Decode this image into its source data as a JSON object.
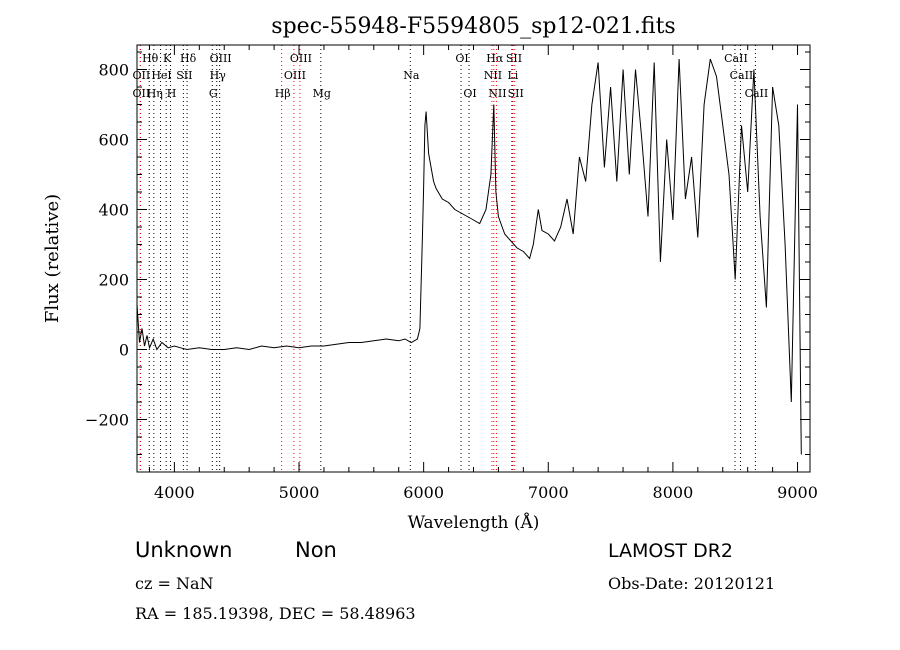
{
  "chart_data": {
    "type": "line",
    "title": "spec-55948-F5594805_sp12-021.fits",
    "xlabel": "Wavelength (Å)",
    "ylabel": "Flux (relative)",
    "xlim": [
      3700,
      9100
    ],
    "ylim": [
      -350,
      870
    ],
    "xticks": [
      4000,
      5000,
      6000,
      7000,
      8000,
      9000
    ],
    "yticks": [
      -200,
      0,
      200,
      400,
      600,
      800
    ],
    "grid": false,
    "series": [
      {
        "color": "#000000",
        "x": [
          3700,
          3720,
          3740,
          3760,
          3780,
          3800,
          3830,
          3860,
          3900,
          3950,
          4000,
          4050,
          4100,
          4200,
          4300,
          4400,
          4500,
          4600,
          4700,
          4800,
          4900,
          5000,
          5100,
          5200,
          5300,
          5400,
          5500,
          5600,
          5700,
          5800,
          5850,
          5900,
          5950,
          5970,
          5990,
          6000,
          6010,
          6020,
          6040,
          6060,
          6080,
          6100,
          6150,
          6200,
          6250,
          6300,
          6350,
          6400,
          6450,
          6500,
          6540,
          6563,
          6580,
          6600,
          6650,
          6700,
          6750,
          6800,
          6850,
          6880,
          6900,
          6920,
          6950,
          7000,
          7050,
          7100,
          7150,
          7200,
          7250,
          7300,
          7350,
          7400,
          7450,
          7500,
          7550,
          7600,
          7650,
          7700,
          7750,
          7800,
          7850,
          7900,
          7950,
          8000,
          8050,
          8100,
          8150,
          8200,
          8250,
          8300,
          8350,
          8400,
          8450,
          8500,
          8550,
          8600,
          8650,
          8700,
          8750,
          8800,
          8850,
          8900,
          8950,
          9000,
          9030
        ],
        "y": [
          130,
          20,
          60,
          10,
          40,
          5,
          30,
          0,
          20,
          5,
          10,
          5,
          0,
          5,
          0,
          0,
          5,
          0,
          10,
          5,
          10,
          5,
          10,
          10,
          15,
          20,
          20,
          25,
          30,
          25,
          30,
          20,
          30,
          60,
          320,
          460,
          640,
          680,
          560,
          520,
          480,
          460,
          430,
          420,
          400,
          390,
          380,
          370,
          360,
          400,
          500,
          700,
          450,
          380,
          330,
          310,
          290,
          280,
          260,
          300,
          350,
          400,
          340,
          330,
          310,
          350,
          430,
          330,
          550,
          480,
          700,
          820,
          520,
          750,
          480,
          800,
          500,
          800,
          600,
          380,
          820,
          250,
          600,
          370,
          830,
          430,
          550,
          320,
          700,
          830,
          780,
          640,
          500,
          200,
          640,
          450,
          800,
          380,
          120,
          750,
          640,
          300,
          -150,
          700,
          -300
        ]
      }
    ],
    "line_markers": [
      {
        "label": "Hθ",
        "wl": 3798,
        "row": 1,
        "color": "#000000"
      },
      {
        "label": "OII",
        "wl": 3727,
        "row": 2,
        "color": "#000000"
      },
      {
        "label": "OII",
        "wl": 3727,
        "row": 3,
        "color": "#ff0000"
      },
      {
        "label": "Hη",
        "wl": 3835,
        "row": 3,
        "color": "#000000"
      },
      {
        "label": "K",
        "wl": 3934,
        "row": 1,
        "color": "#000000"
      },
      {
        "label": "HeI",
        "wl": 3889,
        "row": 2,
        "color": "#000000"
      },
      {
        "label": "SII",
        "wl": 4072,
        "row": 2,
        "color": "#000000"
      },
      {
        "label": "H",
        "wl": 3969,
        "row": 3,
        "color": "#000000"
      },
      {
        "label": "Hδ",
        "wl": 4102,
        "row": 1,
        "color": "#000000"
      },
      {
        "label": "OIII",
        "wl": 4363,
        "row": 1,
        "color": "#000000"
      },
      {
        "label": "Hγ",
        "wl": 4340,
        "row": 2,
        "color": "#000000"
      },
      {
        "label": "G",
        "wl": 4304,
        "row": 3,
        "color": "#000000"
      },
      {
        "label": "OIII",
        "wl": 5007,
        "row": 1,
        "color": "#ff0000"
      },
      {
        "label": "OIII",
        "wl": 4959,
        "row": 2,
        "color": "#ff0000"
      },
      {
        "label": "Hβ",
        "wl": 4861,
        "row": 3,
        "color": "#ff0000"
      },
      {
        "label": "Mg",
        "wl": 5175,
        "row": 3,
        "color": "#000000"
      },
      {
        "label": "Na",
        "wl": 5893,
        "row": 2,
        "color": "#000000"
      },
      {
        "label": "OI",
        "wl": 6300,
        "row": 1,
        "color": "#000000"
      },
      {
        "label": "OI",
        "wl": 6364,
        "row": 3,
        "color": "#000000"
      },
      {
        "label": "Hα",
        "wl": 6563,
        "row": 1,
        "color": "#ff0000"
      },
      {
        "label": "SII",
        "wl": 6717,
        "row": 1,
        "color": "#ff0000"
      },
      {
        "label": "NII",
        "wl": 6548,
        "row": 2,
        "color": "#ff0000"
      },
      {
        "label": "Li",
        "wl": 6708,
        "row": 2,
        "color": "#000000"
      },
      {
        "label": "NII",
        "wl": 6584,
        "row": 3,
        "color": "#ff0000"
      },
      {
        "label": "SII",
        "wl": 6731,
        "row": 3,
        "color": "#ff0000"
      },
      {
        "label": "CaII",
        "wl": 8498,
        "row": 1,
        "color": "#000000"
      },
      {
        "label": "CaII",
        "wl": 8542,
        "row": 2,
        "color": "#000000"
      },
      {
        "label": "CaII",
        "wl": 8662,
        "row": 3,
        "color": "#000000"
      }
    ]
  },
  "info": {
    "class_text": "Unknown",
    "subclass_text": "Non",
    "survey": "LAMOST DR2",
    "redshift": "cz = NaN",
    "obs_date": "Obs-Date: 20120121",
    "coords": "RA = 185.19398, DEC =  58.48963"
  }
}
